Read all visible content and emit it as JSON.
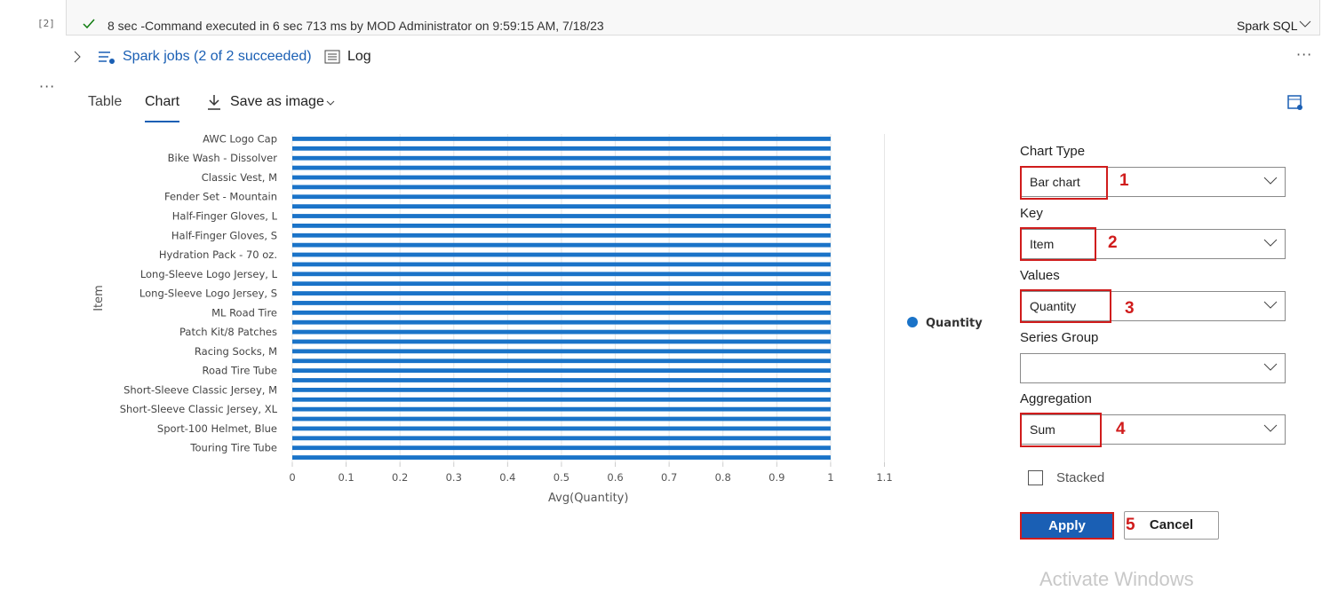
{
  "cell": {
    "index": "[2]",
    "status": "8 sec -Command executed in 6 sec 713 ms by MOD Administrator on 9:59:15 AM, 7/18/23",
    "language": "Spark SQL"
  },
  "jobs": {
    "spark_jobs": "Spark jobs (2 of 2 succeeded)",
    "log": "Log"
  },
  "tabs": {
    "table": "Table",
    "chart": "Chart",
    "save": "Save as image"
  },
  "settings": {
    "chart_type_label": "Chart Type",
    "chart_type": "Bar chart",
    "chart_type_step": "1",
    "key_label": "Key",
    "key": "Item",
    "key_step": "2",
    "values_label": "Values",
    "values": "Quantity",
    "values_step": "3",
    "series_group_label": "Series Group",
    "aggregation_label": "Aggregation",
    "aggregation": "Sum",
    "aggregation_step": "4",
    "stacked": "Stacked",
    "apply": "Apply",
    "apply_step": "5",
    "cancel": "Cancel"
  },
  "watermark": "Activate Windows",
  "chart_data": {
    "type": "barh",
    "x_label": "Avg(Quantity)",
    "y_label": "Item",
    "categories": [
      "AWC Logo Cap",
      null,
      "Bike Wash - Dissolver",
      null,
      "Classic Vest, M",
      null,
      "Fender Set - Mountain",
      null,
      "Half-Finger Gloves, L",
      null,
      "Half-Finger Gloves, S",
      null,
      "Hydration Pack - 70 oz.",
      null,
      "Long-Sleeve Logo Jersey, L",
      null,
      "Long-Sleeve Logo Jersey, S",
      null,
      "ML Road Tire",
      null,
      "Patch Kit/8 Patches",
      null,
      "Racing Socks, M",
      null,
      "Road Tire Tube",
      null,
      "Short-Sleeve Classic Jersey, M",
      null,
      "Short-Sleeve Classic Jersey, XL",
      null,
      "Sport-100 Helmet, Blue",
      null,
      "Touring Tire Tube",
      null
    ],
    "series": [
      {
        "name": "Quantity",
        "color": "#1a73c8",
        "values": [
          1,
          1,
          1,
          1,
          1,
          1,
          1,
          1,
          1,
          1,
          1,
          1,
          1,
          1,
          1,
          1,
          1,
          1,
          1,
          1,
          1,
          1,
          1,
          1,
          1,
          1,
          1,
          1,
          1,
          1,
          1,
          1,
          1,
          1
        ]
      }
    ],
    "xlim": [
      0,
      1.1
    ],
    "xticks": [
      0,
      0.1,
      0.2,
      0.3,
      0.4,
      0.5,
      0.6,
      0.7,
      0.8,
      0.9,
      1,
      1.1
    ],
    "grid": true,
    "legend": "right"
  }
}
